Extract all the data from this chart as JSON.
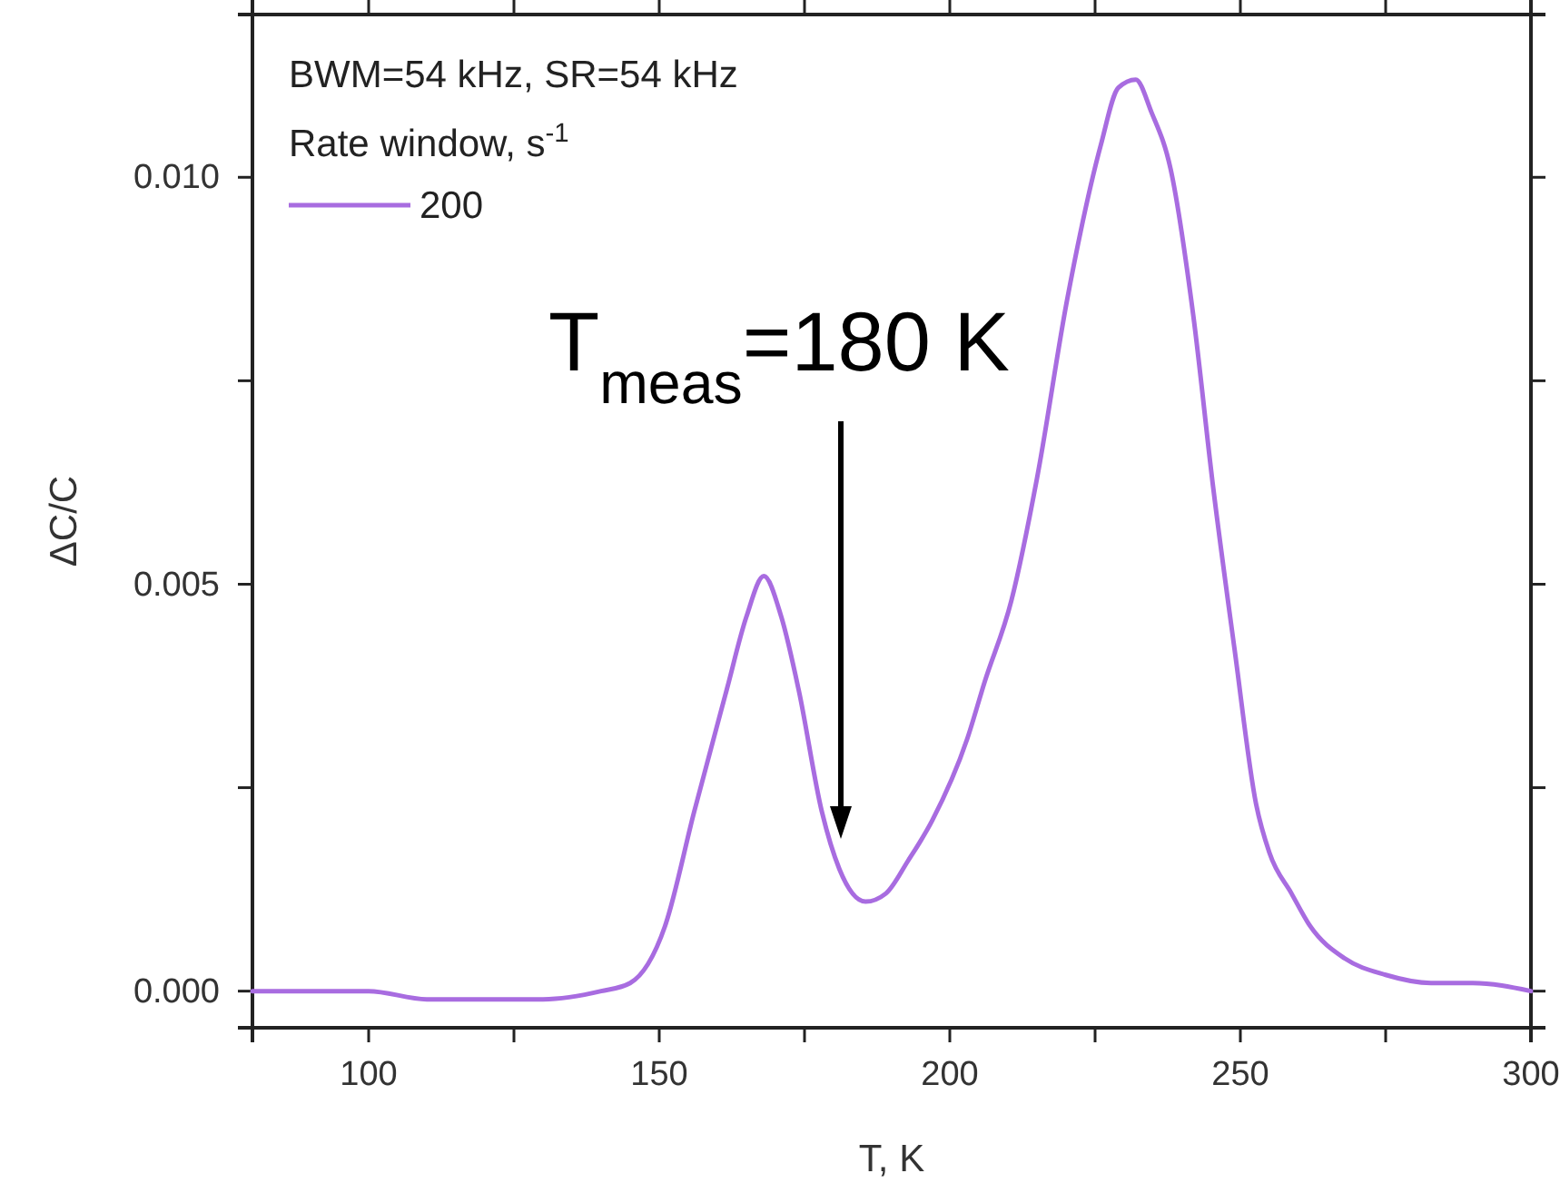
{
  "chart_data": {
    "type": "line",
    "xlabel": "T, K",
    "ylabel": "ΔC/C",
    "legend_title": "Rate window, s$^{-1}$",
    "legend": "top left",
    "marker": "none",
    "line_style": "solid",
    "grid": false,
    "annotations": [
      "BWM=54 kHz, SR=54 kHz",
      "T$_{meas}$=180 K"
    ],
    "xlim": [
      80,
      300
    ],
    "xticks": [
      100,
      {
        "value": 125,
        "label": null
      },
      150,
      {
        "value": 175,
        "label": null
      },
      200,
      {
        "value": 225,
        "label": null
      },
      250,
      {
        "value": 275,
        "label": null
      },
      300
    ],
    "ylim": [
      -0.00045,
      0.012
    ],
    "yticks": [
      {
        "value": 0,
        "label": "0.000"
      },
      {
        "value": 0.0025,
        "label": null
      },
      {
        "value": 0.005,
        "label": "0.005"
      },
      {
        "value": 0.0075,
        "label": null
      },
      {
        "value": 0.01,
        "label": "0.010"
      }
    ],
    "series": [
      {
        "name": "200",
        "color": "#a86ce0",
        "x": [
          80,
          90,
          100,
          110,
          120,
          130,
          140,
          145,
          151,
          156,
          161.6,
          165,
          168,
          171,
          174,
          178,
          181,
          185.5,
          189,
          192.8,
          197,
          203,
          206,
          210.6,
          215,
          220.2,
          226,
          229,
          232,
          234.7,
          238,
          241.9,
          245.3,
          249,
          252.7,
          255,
          258.8,
          262,
          268,
          275,
          282.8,
          290,
          300
        ],
        "values": [
          0,
          0,
          0,
          -0.0001,
          -0.0001,
          -0.0001,
          0,
          0.0001,
          0.0008,
          0.0022,
          0.0037,
          0.0046,
          0.0051,
          0.0046,
          0.0037,
          0.0022,
          0.0015,
          0.0011,
          0.0012,
          0.0016,
          0.0021,
          0.0031,
          0.0038,
          0.0048,
          0.0063,
          0.0085,
          0.0104,
          0.0111,
          0.0112,
          0.0108,
          0.0101,
          0.0083,
          0.0062,
          0.0042,
          0.0023,
          0.0017,
          0.0012,
          0.0008,
          0.0004,
          0.0002,
          0.0001,
          0.0001,
          0
        ]
      }
    ]
  }
}
